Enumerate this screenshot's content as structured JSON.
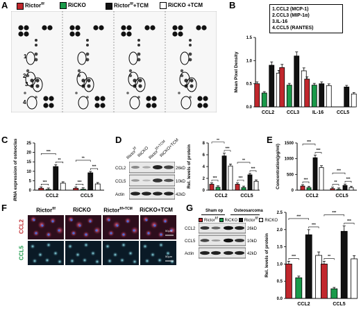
{
  "panel_a": {
    "letter": "A",
    "legend": [
      {
        "label": "Rictor",
        "sup": "f/f",
        "color": "#c1272d"
      },
      {
        "label": "RiCKO",
        "sup": "",
        "color": "#1a9a4a"
      },
      {
        "label": "Rictor",
        "sup": "f/f",
        "suffix": "+TCM",
        "color": "#111111"
      },
      {
        "label": "RiCKO +TCM",
        "sup": "",
        "color": "#ffffff"
      }
    ],
    "spot_labels": [
      "1",
      "2",
      "3",
      "4"
    ]
  },
  "panel_b": {
    "letter": "B",
    "key": [
      "1.CCL2 (MCP-1)",
      "2.CCL3 (MIP-1α)",
      "3.IL-16",
      "4.CCL5 (RANTES)"
    ]
  },
  "panel_c": {
    "letter": "C"
  },
  "panel_d": {
    "letter": "D",
    "lane_labels": [
      "Rictor",
      "RiCKO",
      "Rictor",
      "RiCKO+TCM"
    ],
    "lane_sups": [
      "f/f",
      "",
      "f/f+TCM",
      ""
    ],
    "rows": [
      {
        "name": "CCL2",
        "size": "26kD"
      },
      {
        "name": "CCL5",
        "size": "10kD"
      },
      {
        "name": "Actin",
        "size": "42kD"
      }
    ]
  },
  "panel_e": {
    "letter": "E"
  },
  "panel_f": {
    "letter": "F",
    "columns": [
      "Rictor",
      "RiCKO",
      "Rictor",
      "RiCKO+TCM"
    ],
    "column_sups": [
      "f/f",
      "",
      "f/f+TCM",
      ""
    ],
    "rows": [
      "CCL2",
      "CCL5"
    ],
    "scale": "50μm"
  },
  "panel_g": {
    "letter": "G",
    "groups": [
      "Sham op",
      "Osteosarcoma"
    ],
    "legend": [
      {
        "label": "Rictor",
        "sup": "f/f",
        "color": "#c1272d"
      },
      {
        "label": "RiCKO",
        "sup": "",
        "color": "#1a9a4a"
      },
      {
        "label": "Rictor",
        "sup": "f/f",
        "color": "#111111"
      },
      {
        "label": "RiCKO",
        "sup": "",
        "color": "#ffffff"
      }
    ],
    "rows": [
      {
        "name": "CCL2",
        "size": "26kD"
      },
      {
        "name": "CCL5",
        "size": "10kD"
      },
      {
        "name": "Actin",
        "size": "42kD"
      }
    ]
  },
  "colors": {
    "rictor": "#c1272d",
    "ricko": "#1a9a4a",
    "rictor_tcm": "#111111",
    "ricko_tcm": "#ffffff"
  },
  "chart_data": [
    {
      "id": "B",
      "type": "bar",
      "categories": [
        "CCL2",
        "CCL3",
        "IL-16",
        "CCL5"
      ],
      "series": [
        {
          "values": [
            0.5,
            0.85,
            0.6,
            0
          ]
        },
        {
          "values": [
            0.3,
            0.47,
            0.47,
            0
          ]
        },
        {
          "values": [
            0.9,
            1.1,
            0.5,
            0.43
          ]
        },
        {
          "values": [
            0.73,
            0.78,
            0.46,
            0.28
          ]
        }
      ],
      "ylabel": "Mean Pixel Density",
      "ylim": [
        0,
        1.5
      ],
      "yticks": [
        "0.0",
        "0.5",
        "1.0",
        "1.5"
      ]
    },
    {
      "id": "C",
      "type": "bar",
      "categories": [
        "CCL2",
        "CCL5"
      ],
      "series": [
        {
          "values": [
            1.0,
            1.0
          ]
        },
        {
          "values": [
            0.4,
            0.5
          ]
        },
        {
          "values": [
            12.5,
            9.2
          ]
        },
        {
          "values": [
            3.7,
            3.3
          ]
        }
      ],
      "ylabel": "Rel. mRNA expression of osteoclastic genes",
      "ylim": [
        0,
        25
      ],
      "yticks": [
        "0",
        "5",
        "10",
        "15",
        "20",
        "25"
      ],
      "annotations": [
        "***",
        "**",
        "***",
        "***",
        "***",
        "**"
      ]
    },
    {
      "id": "D",
      "type": "bar",
      "categories": [
        "CCL2",
        "CCL5"
      ],
      "series": [
        {
          "values": [
            1.0,
            1.0
          ]
        },
        {
          "values": [
            0.5,
            0.45
          ]
        },
        {
          "values": [
            5.8,
            2.6
          ]
        },
        {
          "values": [
            4.1,
            1.5
          ]
        }
      ],
      "ylabel": "Rel. levels of protein",
      "ylim": [
        0,
        8
      ],
      "yticks": [
        "0",
        "2",
        "4",
        "6",
        "8"
      ],
      "annotations": [
        "***",
        "***",
        "**",
        "***",
        "***",
        "**"
      ]
    },
    {
      "id": "E",
      "type": "bar",
      "categories": [
        "CCL2",
        "CCL5"
      ],
      "series": [
        {
          "values": [
            130,
            50
          ]
        },
        {
          "values": [
            80,
            25
          ]
        },
        {
          "values": [
            1030,
            150
          ]
        },
        {
          "values": [
            720,
            80
          ]
        }
      ],
      "ylabel": "Concentration(pg/ml)",
      "ylim": [
        0,
        1500
      ],
      "yticks": [
        "0",
        "500",
        "1000",
        "1500"
      ],
      "annotations": [
        "***",
        "***",
        "***",
        "**",
        "***",
        "***"
      ]
    },
    {
      "id": "G",
      "type": "bar",
      "categories": [
        "CCL2",
        "CCL5"
      ],
      "series": [
        {
          "values": [
            1.0,
            1.0
          ]
        },
        {
          "values": [
            0.6,
            0.28
          ]
        },
        {
          "values": [
            1.85,
            1.95
          ]
        },
        {
          "values": [
            1.25,
            1.15
          ]
        }
      ],
      "ylabel": "Rel. levels of protein",
      "ylim": [
        0,
        2.5
      ],
      "yticks": [
        "0.0",
        "0.5",
        "1.0",
        "1.5",
        "2.0",
        "2.5"
      ],
      "annotations": [
        "***",
        "***",
        "***",
        "**",
        "***",
        "***"
      ]
    }
  ]
}
